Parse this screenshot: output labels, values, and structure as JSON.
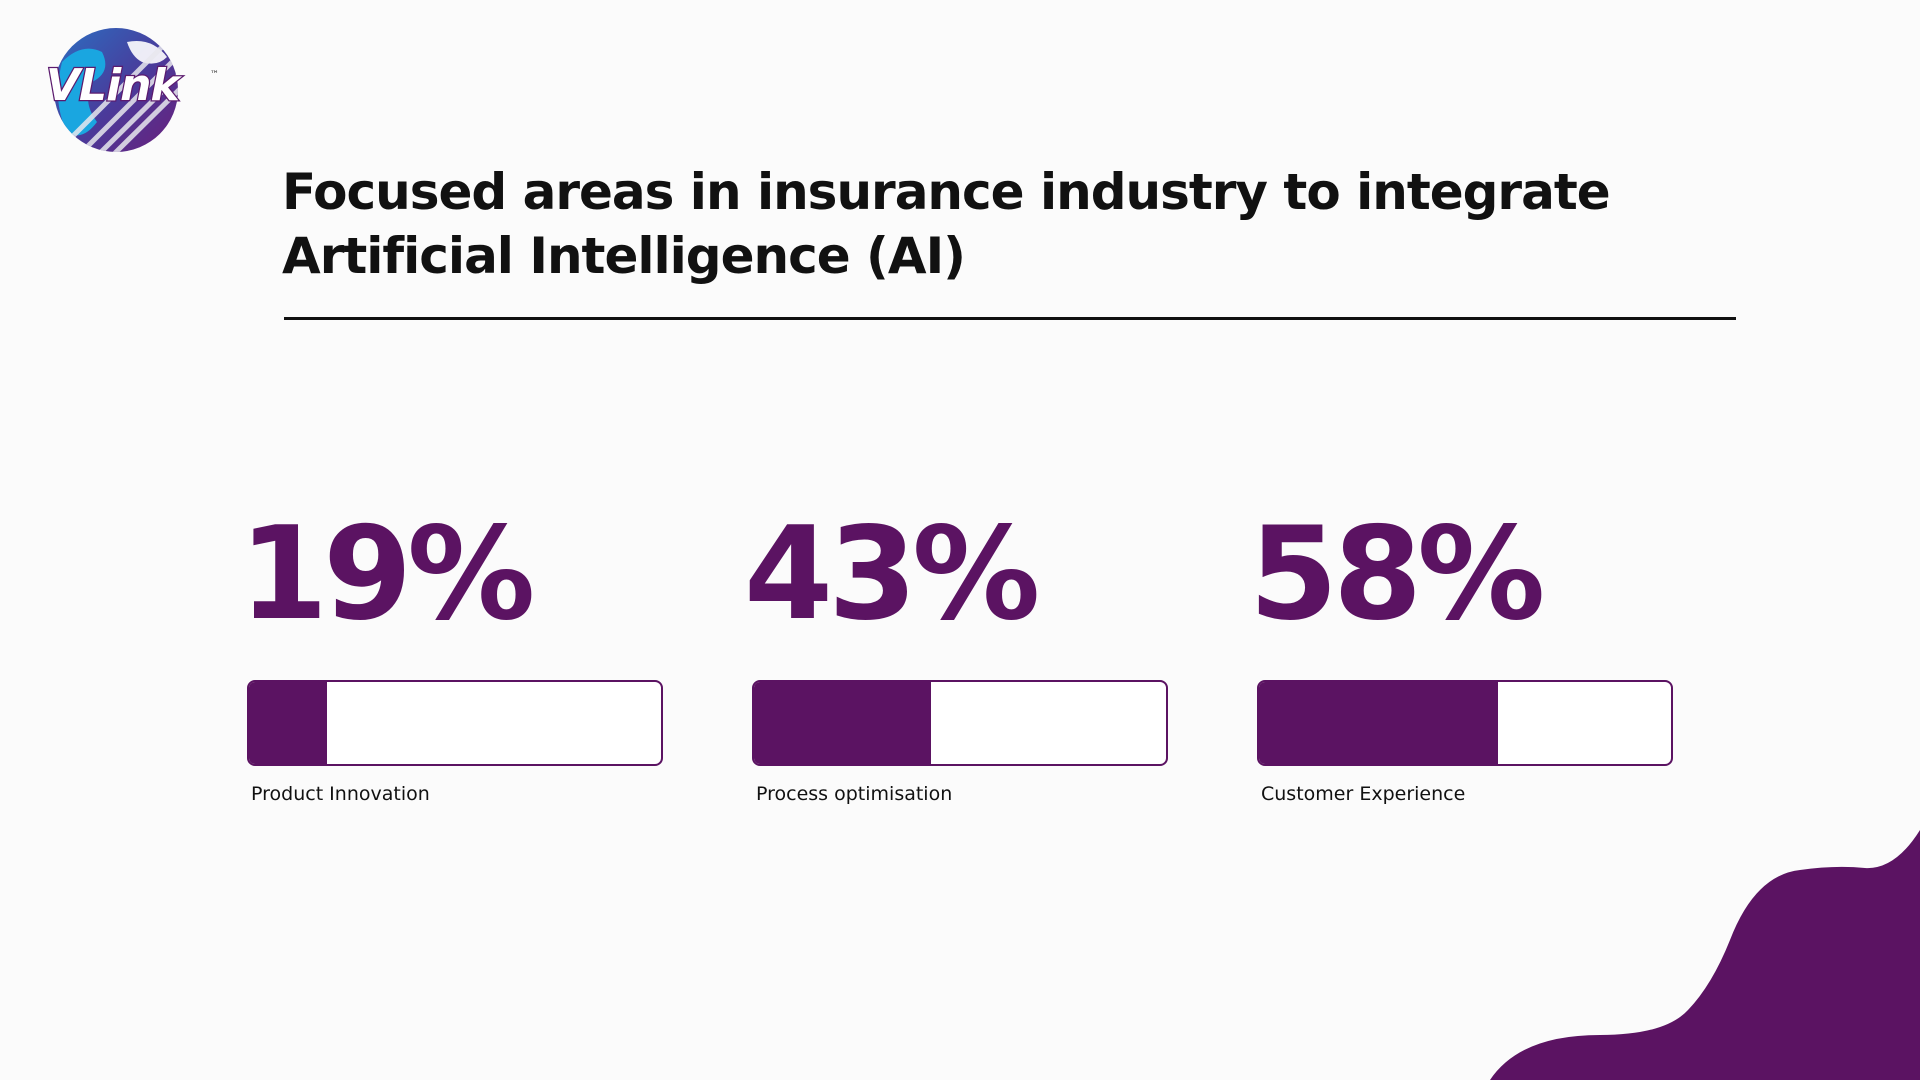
{
  "logo": {
    "text": "VLink",
    "tm": "™",
    "icon": "globe-icon"
  },
  "title": {
    "line1": "Focused areas in insurance industry to integrate",
    "line2": "Artificial Intelligence (AI)"
  },
  "stats": [
    {
      "value": "19%",
      "percent": 19,
      "label": "Product Innovation"
    },
    {
      "value": "43%",
      "percent": 43,
      "label": "Process optimisation"
    },
    {
      "value": "58%",
      "percent": 58,
      "label": "Customer Experience"
    }
  ],
  "colors": {
    "accent": "#5b1362",
    "text": "#111111",
    "background": "#fbfbfb",
    "globe_blue": "#1aa6e0"
  }
}
